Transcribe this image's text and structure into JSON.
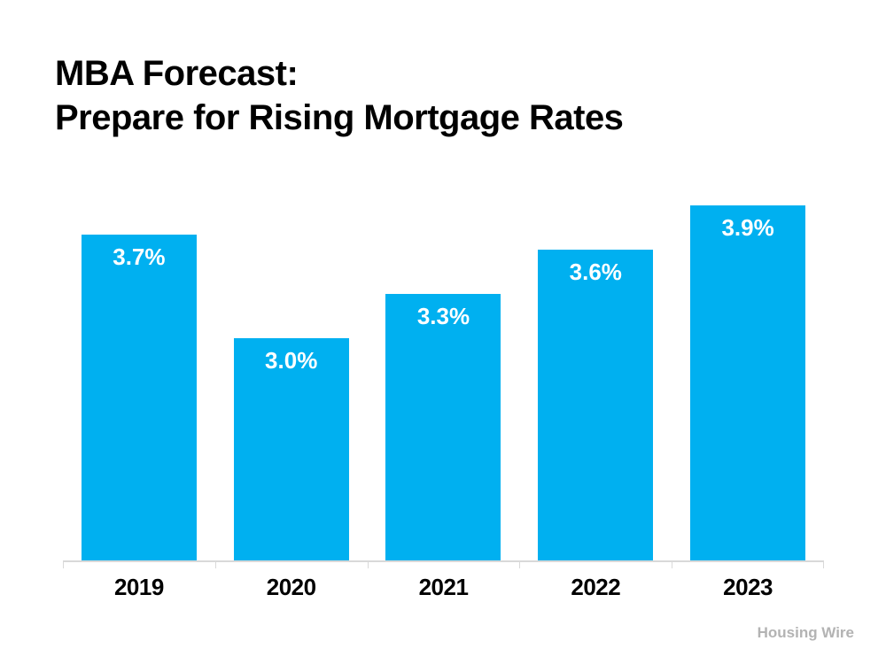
{
  "slide": {
    "title_line1": "MBA Forecast:",
    "title_line2": "Prepare for Rising Mortgage Rates",
    "credit": "Housing Wire"
  },
  "colors": {
    "bar": "#00B0F0",
    "bar_label": "#FFFFFF",
    "axis_line": "#D9D9D9",
    "title_text": "#000000",
    "credit_text": "#B3B3B3"
  },
  "chart_data": {
    "type": "bar",
    "title": "MBA Forecast: Prepare for Rising Mortgage Rates",
    "categories": [
      "2019",
      "2020",
      "2021",
      "2022",
      "2023"
    ],
    "values": [
      3.7,
      3.0,
      3.3,
      3.6,
      3.9
    ],
    "data_labels": [
      "3.7%",
      "3.0%",
      "3.3%",
      "3.6%",
      "3.9%"
    ],
    "xlabel": "",
    "ylabel": "",
    "ylim": [
      1.5,
      4.1
    ],
    "grid": false,
    "legend": false,
    "y_axis_visible": false,
    "source_credit": "Housing Wire"
  }
}
